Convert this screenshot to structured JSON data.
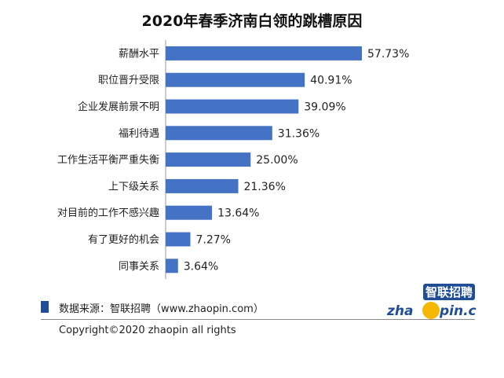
{
  "chart_data": {
    "type": "bar",
    "orientation": "horizontal",
    "title": "2020年春季济南白领的跳槽原因",
    "categories": [
      "薪酬水平",
      "职位晋升受限",
      "企业发展前景不明",
      "福利待遇",
      "工作生活平衡严重失衡",
      "上下级关系",
      "对目前的工作不感兴趣",
      "有了更好的机会",
      "同事关系"
    ],
    "values": [
      57.73,
      40.91,
      39.09,
      31.36,
      25.0,
      21.36,
      13.64,
      7.27,
      3.64
    ],
    "value_labels": [
      "57.73%",
      "40.91%",
      "39.09%",
      "31.36%",
      "25.00%",
      "21.36%",
      "13.64%",
      "7.27%",
      "3.64%"
    ],
    "unit": "%",
    "xlim": [
      0,
      60
    ],
    "bar_color": "#4472c4",
    "grid": false,
    "legend": "none"
  },
  "footer": {
    "source": "数据来源：智联招聘（www.zhaopin.com）",
    "copyright": "Copyright©2020  zhaopin all rights",
    "accent_color": "#1f4e96"
  },
  "logo": {
    "cn_text": "智联招聘",
    "text_before": "zha",
    "text_after": "pin.com",
    "brand_blue": "#1f4e96",
    "brand_yellow": "#f5b800"
  }
}
